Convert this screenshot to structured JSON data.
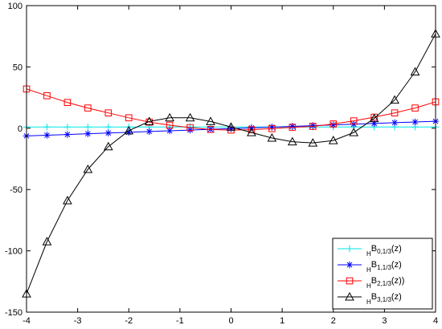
{
  "chart_data": {
    "type": "line",
    "title": "",
    "xlabel": "",
    "ylabel": "",
    "xlim": [
      -4,
      4
    ],
    "ylim": [
      -150,
      100
    ],
    "xticks": [
      -4,
      -3,
      -2,
      -1,
      0,
      1,
      2,
      3,
      4
    ],
    "yticks": [
      -150,
      -100,
      -50,
      0,
      50,
      100
    ],
    "xtick_labels": [
      "-4",
      "-3",
      "-2",
      "-1",
      "0",
      "1",
      "2",
      "3",
      "4"
    ],
    "ytick_labels": [
      "-150",
      "-100",
      "-50",
      "0",
      "50",
      "100"
    ],
    "grid": false,
    "legend_position": "bottom-right",
    "x": [
      -4,
      -3.6,
      -3.2,
      -2.8,
      -2.4,
      -2,
      -1.6,
      -1.2,
      -0.8,
      -0.4,
      0,
      0.4,
      0.8,
      1.2,
      1.6,
      2,
      2.4,
      2.8,
      3.2,
      3.6,
      4
    ],
    "series": [
      {
        "name": "HB0,1/3(z)",
        "legend_pre": "H",
        "legend_main": "B",
        "legend_sub": "0,1/3",
        "legend_post": "(z)",
        "color": "#00e5e5",
        "marker": "plus",
        "values": [
          1,
          1,
          1,
          1,
          1,
          1,
          1,
          1,
          1,
          1,
          1,
          1,
          1,
          1,
          1,
          1,
          1,
          1,
          1,
          1,
          1
        ]
      },
      {
        "name": "HB1,1/3(z)",
        "legend_pre": "H",
        "legend_main": "B",
        "legend_sub": "1,1/3",
        "legend_post": "(z)",
        "color": "#0000ff",
        "marker": "star",
        "values": [
          -6.3,
          -5.7,
          -5.1,
          -4.5,
          -3.9,
          -3.3,
          -2.7,
          -2.1,
          -1.5,
          -0.9,
          -0.3,
          0.3,
          0.9,
          1.5,
          2.1,
          2.7,
          3.3,
          3.9,
          4.5,
          5.1,
          5.7
        ]
      },
      {
        "name": "HB2,1/3(z))",
        "legend_pre": "H",
        "legend_main": "B",
        "legend_sub": "2,1/3",
        "legend_post": "(z))",
        "color": "#ff0000",
        "marker": "square",
        "values": [
          32,
          26.5,
          21,
          16.5,
          12.5,
          8.5,
          5,
          2.5,
          0.5,
          -1,
          -1.5,
          -1.2,
          -0.3,
          0.8,
          1.5,
          3.5,
          6,
          9,
          12.5,
          16.5,
          21.5
        ]
      },
      {
        "name": "HB3,1/3(z)",
        "legend_pre": "H",
        "legend_main": "B",
        "legend_sub": "3,1/3",
        "legend_post": "(z)",
        "color": "#000000",
        "marker": "triangle",
        "values": [
          -135,
          -92.5,
          -59,
          -33.5,
          -15,
          -2,
          5.5,
          8.5,
          8.5,
          5.5,
          1,
          -3.5,
          -8,
          -11,
          -12,
          -10,
          -3.5,
          8,
          23,
          46,
          77
        ]
      }
    ]
  }
}
